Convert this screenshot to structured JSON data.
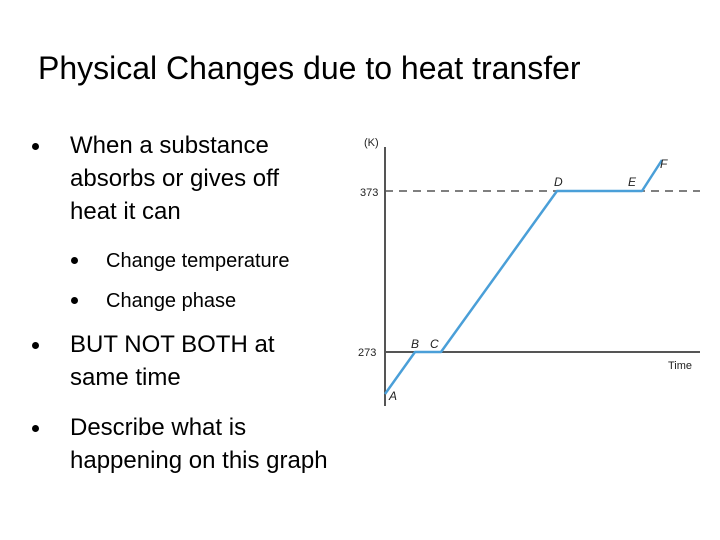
{
  "slide": {
    "title": "Physical Changes due to heat transfer",
    "bullets": [
      "When a substance absorbs or gives off heat it can",
      "Change temperature",
      "Change phase",
      "BUT NOT BOTH at same time",
      "Describe what is happening on this graph"
    ]
  },
  "graph": {
    "y_unit": "(K)",
    "x_label": "Time",
    "ticks": [
      "373",
      "273"
    ],
    "points": [
      "A",
      "B",
      "C",
      "D",
      "E",
      "F"
    ]
  },
  "colors": {
    "curve": "#4a9fd8",
    "axis": "#555555",
    "dashed": "#555555"
  }
}
